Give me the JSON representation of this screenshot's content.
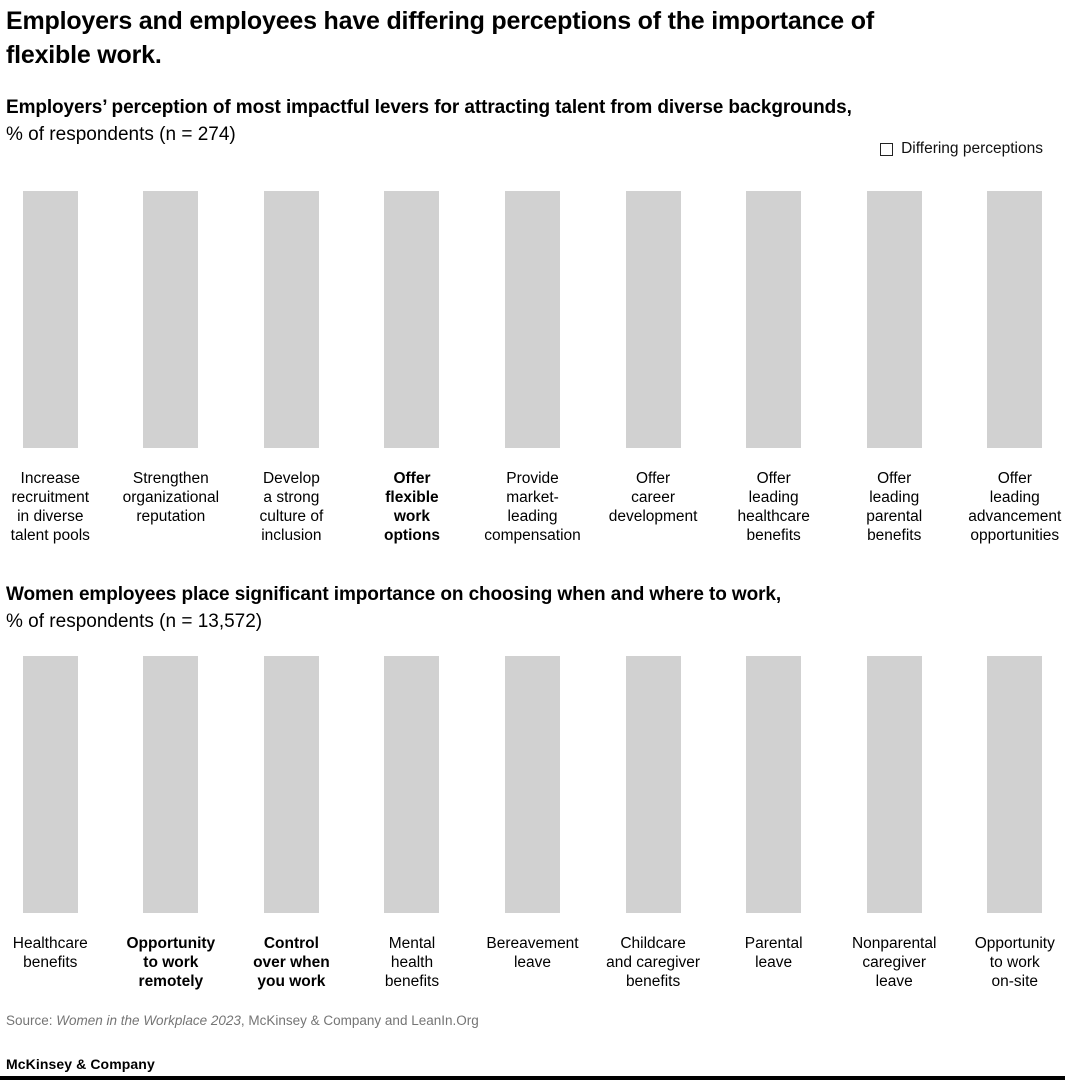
{
  "header": {
    "title": "Employers and employees have differing perceptions of the importance of\nflexible work."
  },
  "legend": {
    "swatch": "outlined-square",
    "label": "Differing perceptions"
  },
  "charts": [
    {
      "heading": "Employers’ perception of most impactful levers for attracting talent from diverse backgrounds,",
      "subheading": "% of respondents (n = 274)",
      "bars": [
        {
          "label": "Increase\nrecruitment\nin diverse\ntalent pools",
          "emphasis": false
        },
        {
          "label": "Strengthen\norganizational\nreputation",
          "emphasis": false
        },
        {
          "label": "Develop\na strong\nculture of\ninclusion",
          "emphasis": false
        },
        {
          "label": "Offer\nflexible\nwork\noptions",
          "emphasis": true
        },
        {
          "label": "Provide\nmarket-\nleading\ncompensation",
          "emphasis": false
        },
        {
          "label": "Offer\ncareer\ndevelopment",
          "emphasis": false
        },
        {
          "label": "Offer\nleading\nhealthcare\nbenefits",
          "emphasis": false
        },
        {
          "label": "Offer\nleading\nparental\nbenefits",
          "emphasis": false
        },
        {
          "label": "Offer\nleading\nadvancement\nopportunities",
          "emphasis": false
        }
      ]
    },
    {
      "heading": "Women employees place significant importance on choosing when and where to work,",
      "subheading": "% of respondents (n = 13,572)",
      "bars": [
        {
          "label": "Healthcare\nbenefits",
          "emphasis": false
        },
        {
          "label": "Opportunity\nto work\nremotely",
          "emphasis": true
        },
        {
          "label": "Control\nover when\nyou work",
          "emphasis": true
        },
        {
          "label": "Mental\nhealth\nbenefits",
          "emphasis": false
        },
        {
          "label": "Bereavement\nleave",
          "emphasis": false
        },
        {
          "label": "Childcare\nand caregiver\nbenefits",
          "emphasis": false
        },
        {
          "label": "Parental\nleave",
          "emphasis": false
        },
        {
          "label": "Nonparental\ncaregiver\nleave",
          "emphasis": false
        },
        {
          "label": "Opportunity\nto work\non-site",
          "emphasis": false
        }
      ]
    }
  ],
  "source": {
    "prefix": "Source: ",
    "italic": "Women in the Workplace 2023",
    "suffix": ", McKinsey & Company and LeanIn.Org"
  },
  "footer": {
    "logo": "McKinsey & Company"
  },
  "colors": {
    "bar": "#d1d1d1",
    "text": "#000000",
    "source_text": "#757575",
    "bottom_rule": "#000000"
  },
  "chart_data": [
    {
      "type": "bar",
      "title": "Employers’ perception of most impactful levers for attracting talent from diverse backgrounds",
      "subtitle": "% of respondents (n = 274)",
      "categories": [
        "Increase recruitment in diverse talent pools",
        "Strengthen organizational reputation",
        "Develop a strong culture of inclusion",
        "Offer flexible work options",
        "Provide market-leading compensation",
        "Offer career development",
        "Offer leading healthcare benefits",
        "Offer leading parental benefits",
        "Offer leading advancement opportunities"
      ],
      "values_shown": false,
      "equal_bar_heights": true,
      "emphasized_categories": [
        "Offer flexible work options"
      ],
      "legend_entries": [
        "Differing perceptions"
      ],
      "legend_position": "top-right",
      "bar_color": "#d1d1d1",
      "grid": false,
      "axis_labels_shown": false
    },
    {
      "type": "bar",
      "title": "Women employees place significant importance on choosing when and where to work",
      "subtitle": "% of respondents (n = 13,572)",
      "categories": [
        "Healthcare benefits",
        "Opportunity to work remotely",
        "Control over when you work",
        "Mental health benefits",
        "Bereavement leave",
        "Childcare and caregiver benefits",
        "Parental leave",
        "Nonparental caregiver leave",
        "Opportunity to work on-site"
      ],
      "values_shown": false,
      "equal_bar_heights": true,
      "emphasized_categories": [
        "Opportunity to work remotely",
        "Control over when you work"
      ],
      "bar_color": "#d1d1d1",
      "grid": false,
      "axis_labels_shown": false
    }
  ]
}
